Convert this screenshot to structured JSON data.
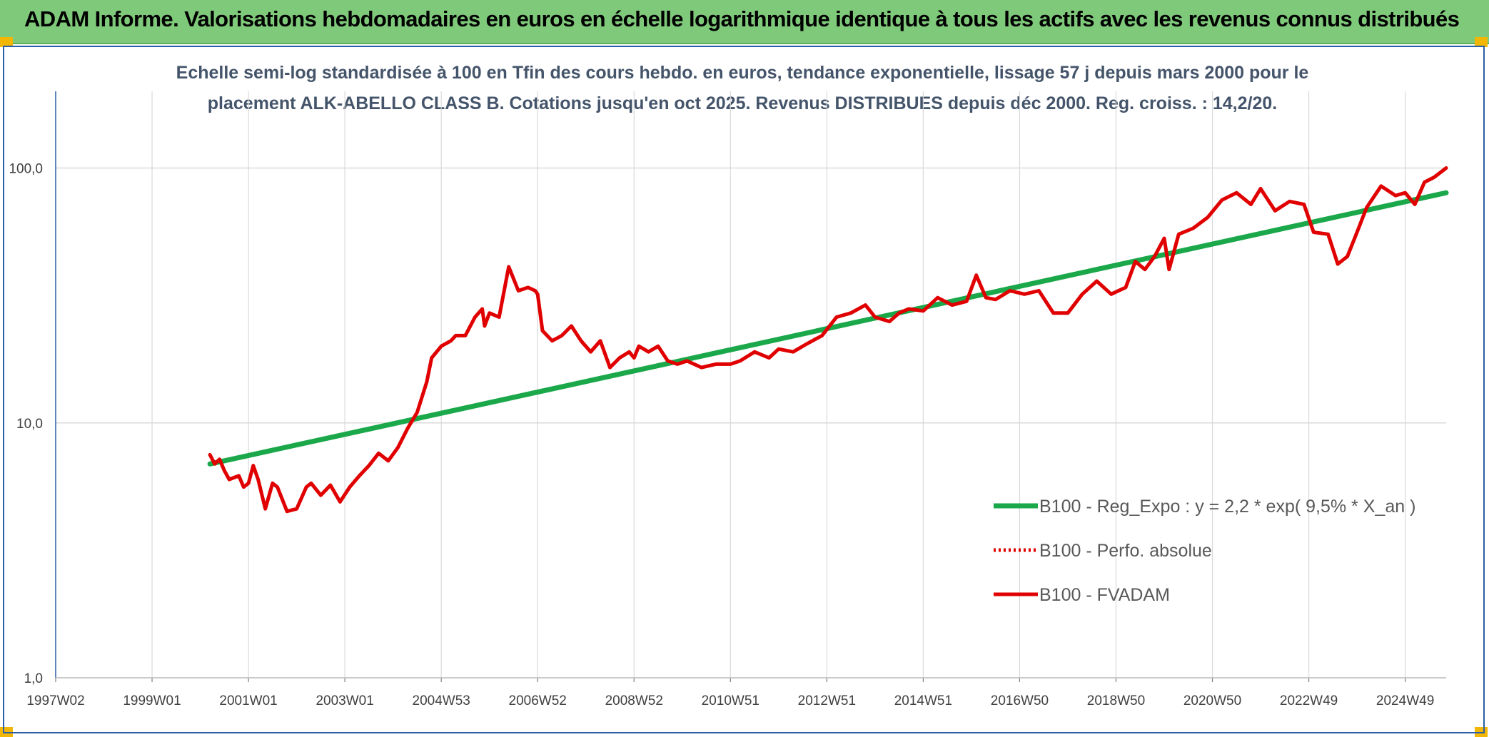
{
  "header": {
    "title": "ADAM Informe. Valorisations hebdomadaires en euros en échelle logarithmique identique à tous les actifs avec les revenus connus distribués"
  },
  "colors": {
    "banner": "#7fc97a",
    "regression": "#1aa84a",
    "fvadam": "#e00000",
    "grid": "#d9d9d9",
    "subtitle": "#44546a"
  },
  "chart_data": {
    "type": "line",
    "title_line1": "Echelle semi-log standardisée à 100 en Tfin des cours hebdo. en euros, tendance exponentielle, lissage 57 j depuis mars 2000 pour le",
    "title_line2": "placement ALK-ABELLO CLASS B. Cotations jusqu'en oct 2025. Revenus DISTRIBUES depuis déc 2000. Reg. croiss. : 14,2/20.",
    "y_scale": "log",
    "ylim": [
      1,
      200
    ],
    "y_ticks": [
      {
        "value": 1,
        "label": "1,0"
      },
      {
        "value": 10,
        "label": "10,0"
      },
      {
        "value": 100,
        "label": "100,0"
      }
    ],
    "xlim": [
      1997.0,
      2025.85
    ],
    "x_ticks": [
      {
        "value": 1997.0,
        "label": "1997W02"
      },
      {
        "value": 1999.0,
        "label": "1999W01"
      },
      {
        "value": 2001.0,
        "label": "2001W01"
      },
      {
        "value": 2003.0,
        "label": "2003W01"
      },
      {
        "value": 2005.0,
        "label": "2004W53"
      },
      {
        "value": 2007.0,
        "label": "2006W52"
      },
      {
        "value": 2009.0,
        "label": "2008W52"
      },
      {
        "value": 2011.0,
        "label": "2010W51"
      },
      {
        "value": 2013.0,
        "label": "2012W51"
      },
      {
        "value": 2015.0,
        "label": "2014W51"
      },
      {
        "value": 2017.0,
        "label": "2016W50"
      },
      {
        "value": 2019.0,
        "label": "2018W50"
      },
      {
        "value": 2021.0,
        "label": "2020W50"
      },
      {
        "value": 2023.0,
        "label": "2022W49"
      },
      {
        "value": 2025.0,
        "label": "2024W49"
      }
    ],
    "legend_position": "right",
    "series": [
      {
        "name": "B100 - Reg_Expo : y = 2,2 * exp( 9,5% *  X_an )",
        "style": "solid",
        "color": "#1aa84a",
        "x": [
          2000.2,
          2025.85
        ],
        "y": [
          6.9,
          80
        ]
      },
      {
        "name": "B100 - Perfo. absolue",
        "style": "dotted",
        "color": "#e00000",
        "x": [],
        "y": []
      },
      {
        "name": "B100 - FVADAM",
        "style": "solid",
        "color": "#e00000",
        "x": [
          2000.2,
          2000.3,
          2000.4,
          2000.5,
          2000.6,
          2000.8,
          2000.9,
          2001.0,
          2001.1,
          2001.2,
          2001.35,
          2001.5,
          2001.6,
          2001.8,
          2002.0,
          2002.2,
          2002.3,
          2002.5,
          2002.7,
          2002.9,
          2003.1,
          2003.3,
          2003.5,
          2003.7,
          2003.9,
          2004.1,
          2004.3,
          2004.5,
          2004.7,
          2004.8,
          2005.0,
          2005.2,
          2005.3,
          2005.5,
          2005.7,
          2005.85,
          2005.9,
          2006.0,
          2006.2,
          2006.4,
          2006.6,
          2006.8,
          2006.95,
          2007.0,
          2007.1,
          2007.3,
          2007.5,
          2007.7,
          2007.9,
          2008.1,
          2008.3,
          2008.5,
          2008.7,
          2008.9,
          2009.0,
          2009.1,
          2009.3,
          2009.5,
          2009.7,
          2009.9,
          2010.1,
          2010.4,
          2010.7,
          2011.0,
          2011.2,
          2011.5,
          2011.8,
          2012.0,
          2012.3,
          2012.6,
          2012.9,
          2013.2,
          2013.5,
          2013.8,
          2014.0,
          2014.3,
          2014.5,
          2014.7,
          2015.0,
          2015.3,
          2015.6,
          2015.9,
          2016.1,
          2016.3,
          2016.5,
          2016.8,
          2017.1,
          2017.4,
          2017.7,
          2018.0,
          2018.3,
          2018.6,
          2018.9,
          2019.2,
          2019.4,
          2019.6,
          2019.8,
          2020.0,
          2020.1,
          2020.3,
          2020.6,
          2020.9,
          2021.2,
          2021.5,
          2021.8,
          2022.0,
          2022.3,
          2022.6,
          2022.9,
          2023.1,
          2023.4,
          2023.6,
          2023.8,
          2024.0,
          2024.2,
          2024.5,
          2024.8,
          2025.0,
          2025.2,
          2025.4,
          2025.6,
          2025.85
        ],
        "y": [
          7.5,
          6.9,
          7.2,
          6.5,
          6.0,
          6.2,
          5.6,
          5.8,
          6.8,
          6.0,
          4.6,
          5.8,
          5.6,
          4.5,
          4.6,
          5.6,
          5.8,
          5.2,
          5.7,
          4.9,
          5.6,
          6.2,
          6.8,
          7.6,
          7.1,
          8.0,
          9.5,
          11.0,
          14.5,
          18.0,
          20.0,
          21.0,
          22.0,
          22.0,
          26.0,
          28.0,
          24.0,
          27.0,
          26.0,
          41.0,
          33.0,
          34.0,
          33.0,
          32.0,
          23.0,
          21.0,
          22.0,
          24.0,
          21.0,
          19.0,
          21.0,
          16.5,
          18.0,
          19.0,
          18.0,
          20.0,
          19.0,
          20.0,
          17.5,
          17.0,
          17.5,
          16.5,
          17.0,
          17.0,
          17.5,
          19.0,
          18.0,
          19.5,
          19.0,
          20.5,
          22.0,
          26.0,
          27.0,
          29.0,
          26.0,
          25.0,
          27.0,
          28.0,
          27.5,
          31.0,
          29.0,
          30.0,
          38.0,
          31.0,
          30.5,
          33.0,
          32.0,
          33.0,
          27.0,
          27.0,
          32.0,
          36.0,
          32.0,
          34.0,
          43.0,
          40.0,
          45.0,
          53.0,
          40.0,
          55.0,
          58.0,
          64.0,
          75.0,
          80.0,
          72.0,
          83.0,
          68.0,
          74.0,
          72.0,
          56.0,
          55.0,
          42.0,
          45.0,
          56.0,
          70.0,
          85.0,
          78.0,
          80.0,
          72.0,
          88.0,
          92.0,
          100.0
        ]
      }
    ]
  }
}
